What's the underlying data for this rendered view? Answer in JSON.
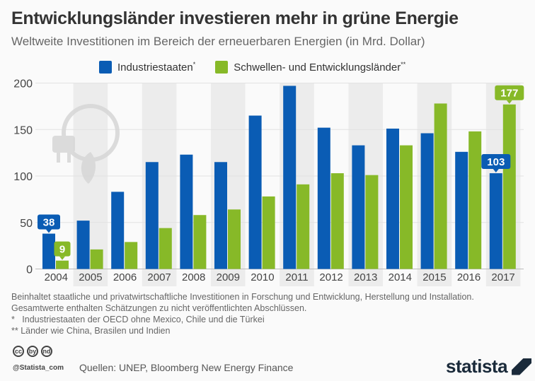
{
  "title": "Entwicklungsländer investieren mehr in grüne Energie",
  "subtitle": "Weltweite Investitionen im Bereich der erneuerbaren Energien (in Mrd. Dollar)",
  "chart_data": {
    "type": "bar",
    "categories": [
      "2004",
      "2005",
      "2006",
      "2007",
      "2008",
      "2009",
      "2010",
      "2011",
      "2012",
      "2013",
      "2014",
      "2015",
      "2016",
      "2017"
    ],
    "series": [
      {
        "name": "Industriestaaten",
        "marker": "*",
        "color": "#0a5cb4",
        "values": [
          38,
          52,
          83,
          115,
          123,
          115,
          165,
          197,
          152,
          133,
          151,
          146,
          126,
          103
        ]
      },
      {
        "name": "Schwellen- und Entwicklungsländer",
        "marker": "**",
        "color": "#87b928",
        "values": [
          9,
          21,
          29,
          44,
          58,
          64,
          78,
          91,
          103,
          101,
          133,
          178,
          148,
          177
        ]
      }
    ],
    "data_labels": [
      {
        "series": 0,
        "index": 0,
        "text": "38"
      },
      {
        "series": 1,
        "index": 0,
        "text": "9"
      },
      {
        "series": 0,
        "index": 13,
        "text": "103"
      },
      {
        "series": 1,
        "index": 13,
        "text": "177"
      }
    ],
    "yticks": [
      "0",
      "50",
      "100",
      "150",
      "200"
    ],
    "ylim": [
      0,
      200
    ],
    "grid": true,
    "legend": "top"
  },
  "notes": [
    "Beinhaltet staatliche und privatwirtschaftliche Investitionen in Forschung und Entwicklung, Herstellung und Installation.",
    "Gesamtwerte enthalten Schätzungen zu nicht veröffentlichten Abschlüssen.",
    "*   Industriestaaten der OECD ohne Mexico, Chile und die Türkei",
    "** Länder wie China, Brasilen und Indien"
  ],
  "footer": {
    "cc_icons": [
      "cc",
      "by",
      "nd"
    ],
    "handle": "@Statista_com",
    "source": "Quellen: UNEP, Bloomberg New Energy Finance",
    "logo": "statista"
  }
}
